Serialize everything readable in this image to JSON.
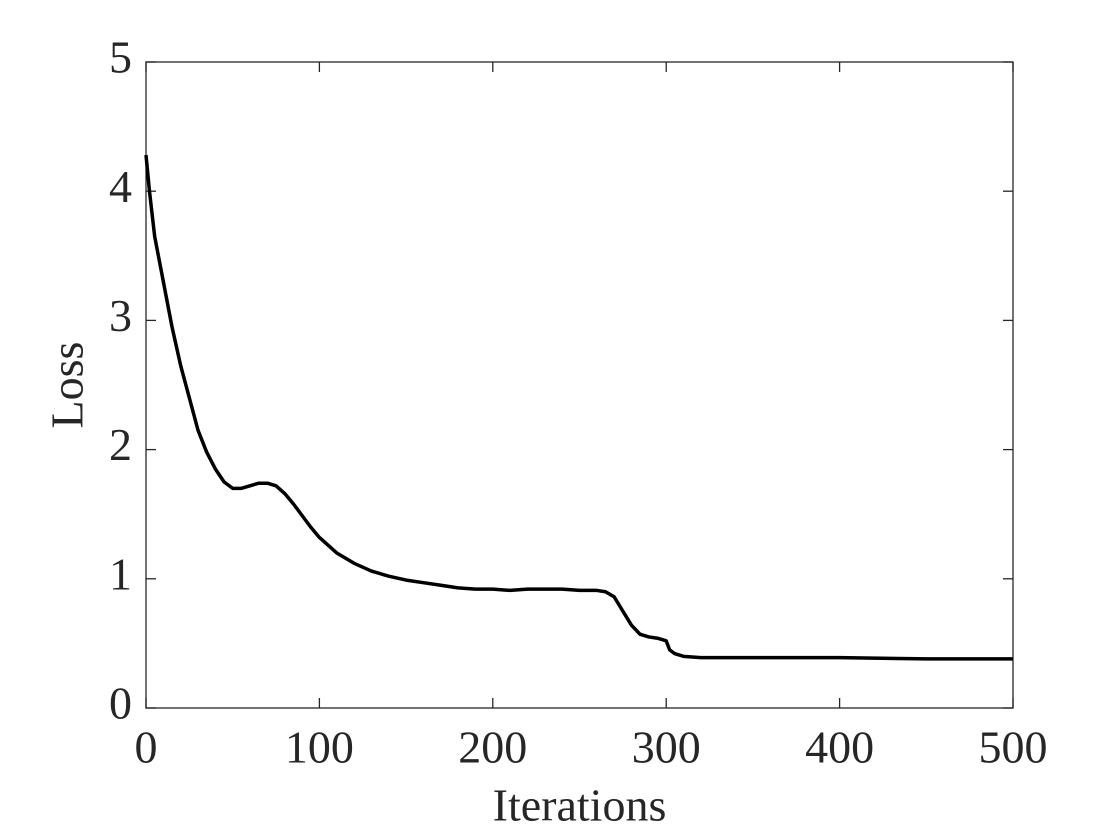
{
  "chart_data": {
    "type": "line",
    "x_label": "Iterations",
    "y_label": "Loss",
    "x": [
      0,
      2,
      5,
      10,
      15,
      20,
      25,
      30,
      35,
      40,
      45,
      50,
      55,
      60,
      65,
      70,
      75,
      80,
      85,
      90,
      95,
      100,
      110,
      120,
      130,
      140,
      150,
      160,
      170,
      180,
      190,
      200,
      210,
      220,
      230,
      240,
      250,
      260,
      265,
      270,
      275,
      280,
      285,
      290,
      295,
      300,
      302,
      305,
      310,
      320,
      340,
      400,
      450,
      500
    ],
    "series": [
      {
        "color": "#000000",
        "values": [
          4.28,
          4.0,
          3.65,
          3.3,
          2.95,
          2.65,
          2.4,
          2.15,
          1.98,
          1.85,
          1.75,
          1.7,
          1.7,
          1.72,
          1.74,
          1.74,
          1.72,
          1.66,
          1.58,
          1.49,
          1.4,
          1.32,
          1.2,
          1.12,
          1.06,
          1.02,
          0.99,
          0.97,
          0.95,
          0.93,
          0.92,
          0.92,
          0.91,
          0.92,
          0.92,
          0.92,
          0.91,
          0.91,
          0.9,
          0.86,
          0.75,
          0.64,
          0.57,
          0.55,
          0.54,
          0.52,
          0.45,
          0.42,
          0.4,
          0.39,
          0.39,
          0.39,
          0.38,
          0.38
        ]
      }
    ],
    "xlim": [
      0,
      500
    ],
    "xticks": [
      0,
      100,
      200,
      300,
      400,
      500
    ],
    "ylim": [
      0,
      5
    ],
    "yticks": [
      0,
      1,
      2,
      3,
      4,
      5
    ]
  }
}
